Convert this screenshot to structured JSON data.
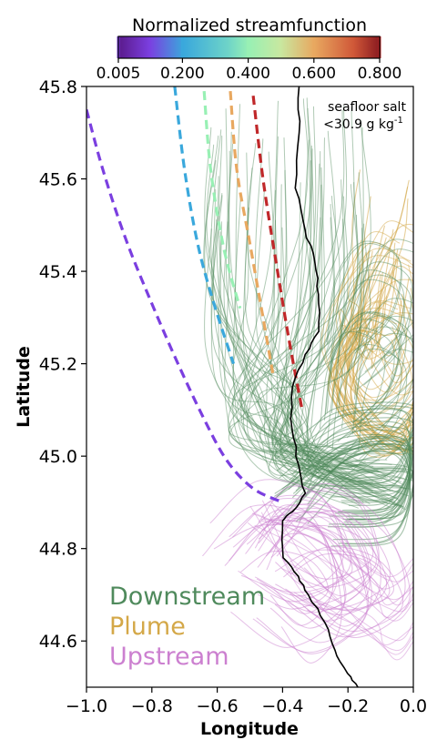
{
  "chart_data": {
    "type": "line",
    "title": "",
    "xlabel": "Longitude",
    "ylabel": "Latitude",
    "xlim": [
      -1.0,
      0.0
    ],
    "ylim": [
      44.5,
      45.8
    ],
    "x_ticks": [
      -1.0,
      -0.8,
      -0.6,
      -0.4,
      -0.2,
      0.0
    ],
    "x_tick_labels": [
      "−1.0",
      "−0.8",
      "−0.6",
      "−0.4",
      "−0.2",
      "0.0"
    ],
    "y_ticks": [
      44.6,
      44.8,
      45.0,
      45.2,
      45.4,
      45.6,
      45.8
    ],
    "y_tick_labels": [
      "44.6",
      "44.8",
      "45.0",
      "45.2",
      "45.4",
      "45.6",
      "45.8"
    ],
    "grid": false,
    "colorbar": {
      "title": "Normalized streamfunction",
      "ticks": [
        0.005,
        0.2,
        0.4,
        0.6,
        0.8
      ],
      "tick_labels": [
        "0.005",
        "0.200",
        "0.400",
        "0.600",
        "0.800"
      ],
      "colors": [
        "#7b3fe0",
        "#3aa8dc",
        "#98f0b4",
        "#e8a860",
        "#c0282a"
      ]
    },
    "annotation": {
      "line1": "seafloor salt",
      "line2_main": "<30.9 g kg",
      "line2_sup": "-1"
    },
    "legend": {
      "placement": "bottom-left",
      "entries": [
        {
          "label": "Downstream",
          "color": "#4f8a5c"
        },
        {
          "label": "Plume",
          "color": "#d4a848"
        },
        {
          "label": "Upstream",
          "color": "#cc80d0"
        }
      ]
    },
    "streamlines": [
      {
        "value": 0.005,
        "color": "#7b3fe0",
        "points": [
          [
            -1.0,
            45.75
          ],
          [
            -0.95,
            45.62
          ],
          [
            -0.88,
            45.47
          ],
          [
            -0.8,
            45.33
          ],
          [
            -0.72,
            45.2
          ],
          [
            -0.64,
            45.08
          ],
          [
            -0.57,
            44.99
          ],
          [
            -0.49,
            44.93
          ],
          [
            -0.4,
            44.9
          ]
        ]
      },
      {
        "value": 0.2,
        "color": "#3aa8dc",
        "points": [
          [
            -0.73,
            45.8
          ],
          [
            -0.7,
            45.62
          ],
          [
            -0.66,
            45.46
          ],
          [
            -0.61,
            45.33
          ],
          [
            -0.55,
            45.2
          ]
        ]
      },
      {
        "value": 0.4,
        "color": "#98f0b4",
        "points": [
          [
            -0.64,
            45.79
          ],
          [
            -0.62,
            45.62
          ],
          [
            -0.58,
            45.45
          ],
          [
            -0.53,
            45.32
          ]
        ]
      },
      {
        "value": 0.6,
        "color": "#e8a860",
        "points": [
          [
            -0.56,
            45.79
          ],
          [
            -0.54,
            45.62
          ],
          [
            -0.5,
            45.46
          ],
          [
            -0.46,
            45.3
          ],
          [
            -0.43,
            45.18
          ]
        ]
      },
      {
        "value": 0.8,
        "color": "#c0282a",
        "points": [
          [
            -0.49,
            45.78
          ],
          [
            -0.46,
            45.6
          ],
          [
            -0.42,
            45.42
          ],
          [
            -0.38,
            45.25
          ],
          [
            -0.34,
            45.1
          ]
        ]
      }
    ],
    "salt_contour": {
      "color": "#000000",
      "points": [
        [
          -0.35,
          45.8
        ],
        [
          -0.35,
          45.7
        ],
        [
          -0.36,
          45.58
        ],
        [
          -0.33,
          45.49
        ],
        [
          -0.3,
          45.42
        ],
        [
          -0.29,
          45.35
        ],
        [
          -0.29,
          45.27
        ],
        [
          -0.33,
          45.22
        ],
        [
          -0.37,
          45.15
        ],
        [
          -0.37,
          45.06
        ],
        [
          -0.35,
          44.98
        ],
        [
          -0.33,
          44.92
        ],
        [
          -0.37,
          44.88
        ],
        [
          -0.4,
          44.86
        ],
        [
          -0.4,
          44.78
        ],
        [
          -0.35,
          44.74
        ],
        [
          -0.32,
          44.7
        ],
        [
          -0.27,
          44.64
        ],
        [
          -0.24,
          44.58
        ],
        [
          -0.2,
          44.53
        ],
        [
          -0.17,
          44.5
        ]
      ]
    }
  }
}
